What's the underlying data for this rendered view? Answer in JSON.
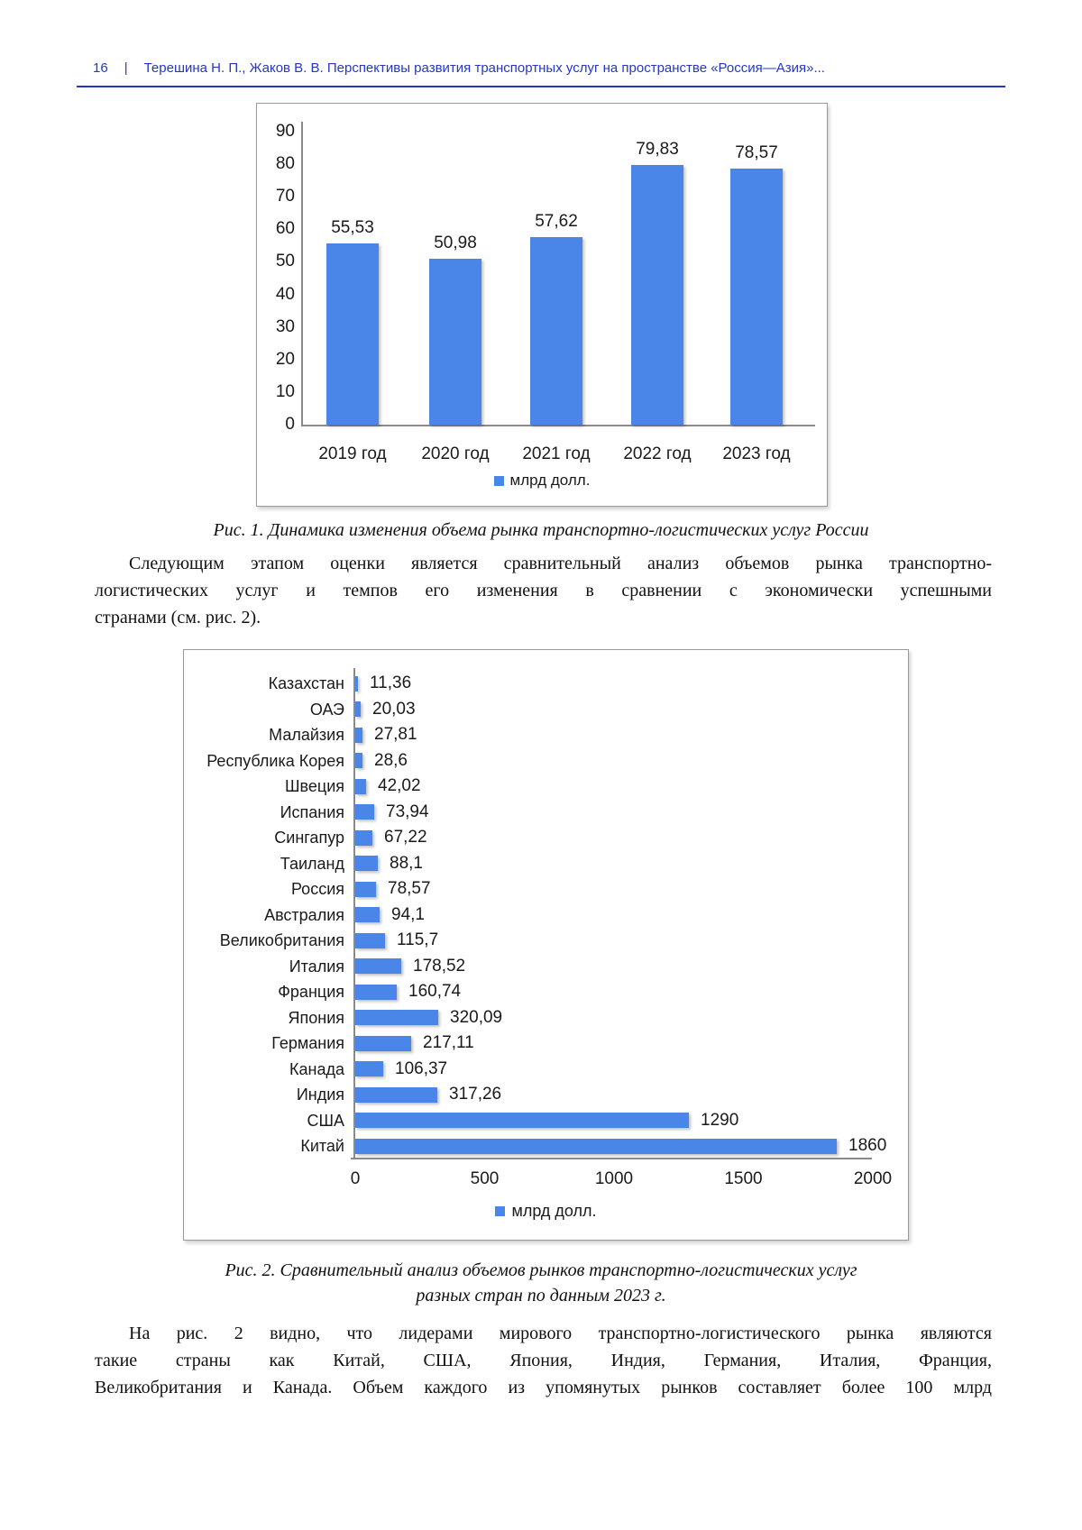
{
  "page": {
    "header": {
      "page_number": "16",
      "separator": "|",
      "title": "Терешина Н. П., Жаков В. В. Перспективы развития транспортных услуг на пространстве «Россия—Азия»...",
      "accent_color": "#2438c4"
    },
    "figure1_caption": "Рис. 1. Динамика изменения объема рынка транспортно-логистических услуг России",
    "paragraph1": {
      "lines": [
        "Следующим этапом оценки является сравнительный анализ объемов рынка транспортно-",
        "логистических услуг и темпов его изменения в сравнении с экономически успешными",
        "странами (см. рис. 2)."
      ]
    },
    "figure2_caption_line1": "Рис. 2. Сравнительный анализ объемов рынков транспортно-логистических услуг",
    "figure2_caption_line2": "разных стран по данным 2023 г.",
    "paragraph2": {
      "lines": [
        "На рис. 2 видно, что лидерами мирового транспортно-логистического рынка являются",
        "такие страны как Китай, США, Япония, Индия, Германия, Италия, Франция,",
        "Великобритания и Канада. Объем каждого из упомянутых рынков составляет более 100 млрд"
      ]
    }
  },
  "chart_data": [
    {
      "type": "bar",
      "orientation": "vertical",
      "title": "",
      "categories": [
        "2019 год",
        "2020 год",
        "2021 год",
        "2022 год",
        "2023 год"
      ],
      "values": [
        55.53,
        50.98,
        57.62,
        79.83,
        78.57
      ],
      "value_labels": [
        "55,53",
        "50,98",
        "57,62",
        "79,83",
        "78,57"
      ],
      "y_ticks": [
        0,
        10,
        20,
        30,
        40,
        50,
        60,
        70,
        80,
        90
      ],
      "ylim": [
        0,
        90
      ],
      "xlabel": "",
      "ylabel": "",
      "legend": "млрд долл.",
      "legend_position": "bottom",
      "bar_color": "#4a86e8",
      "grid": false
    },
    {
      "type": "bar",
      "orientation": "horizontal",
      "title": "",
      "categories": [
        "Казахстан",
        "ОАЭ",
        "Малайзия",
        "Республика Корея",
        "Швеция",
        "Испания",
        "Сингапур",
        "Таиланд",
        "Россия",
        "Австралия",
        "Великобритания",
        "Италия",
        "Франция",
        "Япония",
        "Германия",
        "Канада",
        "Индия",
        "США",
        "Китай"
      ],
      "values": [
        11.36,
        20.03,
        27.81,
        28.6,
        42.02,
        73.94,
        67.22,
        88.1,
        78.57,
        94.1,
        115.7,
        178.52,
        160.74,
        320.09,
        217.11,
        106.37,
        317.26,
        1290,
        1860
      ],
      "value_labels": [
        "11,36",
        "20,03",
        "27,81",
        "28,6",
        "42,02",
        "73,94",
        "67,22",
        "88,1",
        "78,57",
        "94,1",
        "115,7",
        "178,52",
        "160,74",
        "320,09",
        "217,11",
        "106,37",
        "317,26",
        "1290",
        "1860"
      ],
      "x_ticks": [
        0,
        500,
        1000,
        1500,
        2000
      ],
      "xlim": [
        0,
        2000
      ],
      "xlabel": "",
      "ylabel": "",
      "legend": "млрд долл.",
      "legend_position": "bottom",
      "bar_color": "#4a86e8",
      "grid": false
    }
  ]
}
